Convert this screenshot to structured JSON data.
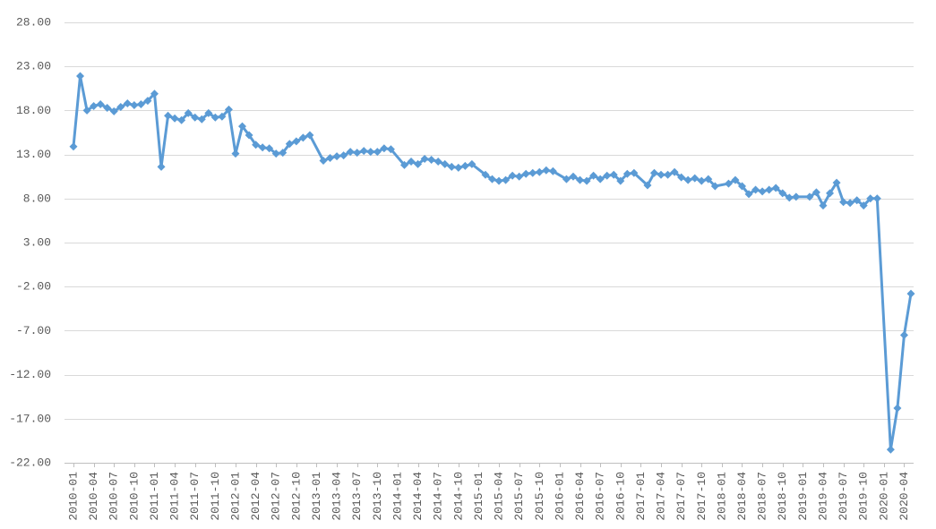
{
  "chart_data": {
    "type": "line",
    "grid": "horizontal",
    "legend": "none",
    "ylim": [
      -22,
      28
    ],
    "xlim": [
      "2010-01",
      "2020-05"
    ],
    "y_ticks": [
      "28.00",
      "23.00",
      "18.00",
      "13.00",
      "8.00",
      "3.00",
      "-2.00",
      "-7.00",
      "-12.00",
      "-17.00",
      "-22.00"
    ],
    "x_ticks": [
      "2010-01",
      "2010-04",
      "2010-07",
      "2010-10",
      "2011-01",
      "2011-04",
      "2011-07",
      "2011-10",
      "2012-01",
      "2012-04",
      "2012-07",
      "2012-10",
      "2013-01",
      "2013-04",
      "2013-07",
      "2013-10",
      "2014-01",
      "2014-04",
      "2014-07",
      "2014-10",
      "2015-01",
      "2015-04",
      "2015-07",
      "2015-10",
      "2016-01",
      "2016-04",
      "2016-07",
      "2016-10",
      "2017-01",
      "2017-04",
      "2017-07",
      "2017-10",
      "2018-01",
      "2018-04",
      "2018-07",
      "2018-10",
      "2019-01",
      "2019-04",
      "2019-07",
      "2019-10",
      "2020-01",
      "2020-04"
    ],
    "series": [
      {
        "color": "#5B9BD5",
        "points": [
          {
            "x": "2010-01",
            "y": 13.9
          },
          {
            "x": "2010-02",
            "y": 21.9
          },
          {
            "x": "2010-03",
            "y": 18.0
          },
          {
            "x": "2010-04",
            "y": 18.5
          },
          {
            "x": "2010-05",
            "y": 18.7
          },
          {
            "x": "2010-06",
            "y": 18.3
          },
          {
            "x": "2010-07",
            "y": 17.9
          },
          {
            "x": "2010-08",
            "y": 18.4
          },
          {
            "x": "2010-09",
            "y": 18.8
          },
          {
            "x": "2010-10",
            "y": 18.6
          },
          {
            "x": "2010-11",
            "y": 18.7
          },
          {
            "x": "2010-12",
            "y": 19.1
          },
          {
            "x": "2011-01",
            "y": 19.9
          },
          {
            "x": "2011-02",
            "y": 11.6
          },
          {
            "x": "2011-03",
            "y": 17.4
          },
          {
            "x": "2011-04",
            "y": 17.1
          },
          {
            "x": "2011-05",
            "y": 16.9
          },
          {
            "x": "2011-06",
            "y": 17.7
          },
          {
            "x": "2011-07",
            "y": 17.2
          },
          {
            "x": "2011-08",
            "y": 17.0
          },
          {
            "x": "2011-09",
            "y": 17.7
          },
          {
            "x": "2011-10",
            "y": 17.2
          },
          {
            "x": "2011-11",
            "y": 17.3
          },
          {
            "x": "2011-12",
            "y": 18.1
          },
          {
            "x": "2012-01",
            "y": 13.1
          },
          {
            "x": "2012-02",
            "y": 16.2
          },
          {
            "x": "2012-03",
            "y": 15.2
          },
          {
            "x": "2012-04",
            "y": 14.1
          },
          {
            "x": "2012-05",
            "y": 13.8
          },
          {
            "x": "2012-06",
            "y": 13.7
          },
          {
            "x": "2012-07",
            "y": 13.1
          },
          {
            "x": "2012-08",
            "y": 13.2
          },
          {
            "x": "2012-09",
            "y": 14.2
          },
          {
            "x": "2012-10",
            "y": 14.5
          },
          {
            "x": "2012-11",
            "y": 14.9
          },
          {
            "x": "2012-12",
            "y": 15.2
          },
          {
            "x": "2013-02",
            "y": 12.3
          },
          {
            "x": "2013-03",
            "y": 12.6
          },
          {
            "x": "2013-04",
            "y": 12.8
          },
          {
            "x": "2013-05",
            "y": 12.9
          },
          {
            "x": "2013-06",
            "y": 13.3
          },
          {
            "x": "2013-07",
            "y": 13.2
          },
          {
            "x": "2013-08",
            "y": 13.4
          },
          {
            "x": "2013-09",
            "y": 13.3
          },
          {
            "x": "2013-10",
            "y": 13.3
          },
          {
            "x": "2013-11",
            "y": 13.7
          },
          {
            "x": "2013-12",
            "y": 13.6
          },
          {
            "x": "2014-02",
            "y": 11.8
          },
          {
            "x": "2014-03",
            "y": 12.2
          },
          {
            "x": "2014-04",
            "y": 11.9
          },
          {
            "x": "2014-05",
            "y": 12.5
          },
          {
            "x": "2014-06",
            "y": 12.4
          },
          {
            "x": "2014-07",
            "y": 12.2
          },
          {
            "x": "2014-08",
            "y": 11.9
          },
          {
            "x": "2014-09",
            "y": 11.6
          },
          {
            "x": "2014-10",
            "y": 11.5
          },
          {
            "x": "2014-11",
            "y": 11.7
          },
          {
            "x": "2014-12",
            "y": 11.9
          },
          {
            "x": "2015-02",
            "y": 10.7
          },
          {
            "x": "2015-03",
            "y": 10.2
          },
          {
            "x": "2015-04",
            "y": 10.0
          },
          {
            "x": "2015-05",
            "y": 10.1
          },
          {
            "x": "2015-06",
            "y": 10.6
          },
          {
            "x": "2015-07",
            "y": 10.5
          },
          {
            "x": "2015-08",
            "y": 10.8
          },
          {
            "x": "2015-09",
            "y": 10.9
          },
          {
            "x": "2015-10",
            "y": 11.0
          },
          {
            "x": "2015-11",
            "y": 11.2
          },
          {
            "x": "2015-12",
            "y": 11.1
          },
          {
            "x": "2016-02",
            "y": 10.2
          },
          {
            "x": "2016-03",
            "y": 10.5
          },
          {
            "x": "2016-04",
            "y": 10.1
          },
          {
            "x": "2016-05",
            "y": 10.0
          },
          {
            "x": "2016-06",
            "y": 10.6
          },
          {
            "x": "2016-07",
            "y": 10.2
          },
          {
            "x": "2016-08",
            "y": 10.6
          },
          {
            "x": "2016-09",
            "y": 10.7
          },
          {
            "x": "2016-10",
            "y": 10.0
          },
          {
            "x": "2016-11",
            "y": 10.8
          },
          {
            "x": "2016-12",
            "y": 10.9
          },
          {
            "x": "2017-02",
            "y": 9.5
          },
          {
            "x": "2017-03",
            "y": 10.9
          },
          {
            "x": "2017-04",
            "y": 10.7
          },
          {
            "x": "2017-05",
            "y": 10.7
          },
          {
            "x": "2017-06",
            "y": 11.0
          },
          {
            "x": "2017-07",
            "y": 10.4
          },
          {
            "x": "2017-08",
            "y": 10.1
          },
          {
            "x": "2017-09",
            "y": 10.3
          },
          {
            "x": "2017-10",
            "y": 10.0
          },
          {
            "x": "2017-11",
            "y": 10.2
          },
          {
            "x": "2017-12",
            "y": 9.4
          },
          {
            "x": "2018-02",
            "y": 9.7
          },
          {
            "x": "2018-03",
            "y": 10.1
          },
          {
            "x": "2018-04",
            "y": 9.4
          },
          {
            "x": "2018-05",
            "y": 8.5
          },
          {
            "x": "2018-06",
            "y": 9.0
          },
          {
            "x": "2018-07",
            "y": 8.8
          },
          {
            "x": "2018-08",
            "y": 9.0
          },
          {
            "x": "2018-09",
            "y": 9.2
          },
          {
            "x": "2018-10",
            "y": 8.6
          },
          {
            "x": "2018-11",
            "y": 8.1
          },
          {
            "x": "2018-12",
            "y": 8.2
          },
          {
            "x": "2019-02",
            "y": 8.2
          },
          {
            "x": "2019-03",
            "y": 8.7
          },
          {
            "x": "2019-04",
            "y": 7.2
          },
          {
            "x": "2019-05",
            "y": 8.6
          },
          {
            "x": "2019-06",
            "y": 9.8
          },
          {
            "x": "2019-07",
            "y": 7.6
          },
          {
            "x": "2019-08",
            "y": 7.5
          },
          {
            "x": "2019-09",
            "y": 7.8
          },
          {
            "x": "2019-10",
            "y": 7.2
          },
          {
            "x": "2019-11",
            "y": 8.0
          },
          {
            "x": "2019-12",
            "y": 8.0
          },
          {
            "x": "2020-02",
            "y": -20.5
          },
          {
            "x": "2020-03",
            "y": -15.8
          },
          {
            "x": "2020-04",
            "y": -7.5
          },
          {
            "x": "2020-05",
            "y": -2.8
          }
        ]
      }
    ]
  }
}
